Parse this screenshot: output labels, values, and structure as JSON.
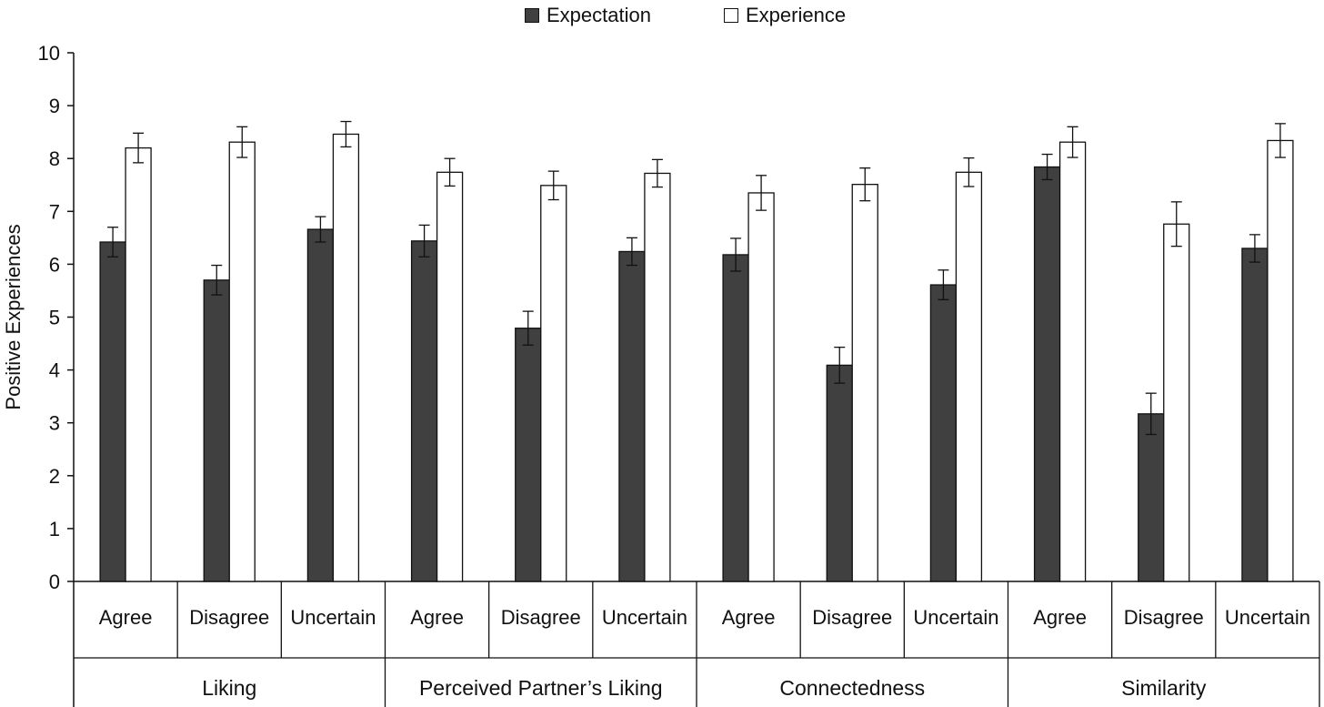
{
  "chart_data": {
    "type": "bar",
    "ylabel": "Positive Experiences",
    "ylim": [
      0,
      10
    ],
    "yticks": [
      "0",
      "1",
      "2",
      "3",
      "4",
      "5",
      "6",
      "7",
      "8",
      "9",
      "10"
    ],
    "legend_placement": "top",
    "groups": [
      {
        "label": "Liking",
        "categories": [
          "Agree",
          "Disagree",
          "Uncertain"
        ]
      },
      {
        "label": "Perceived Partner’s Liking",
        "categories": [
          "Agree",
          "Disagree",
          "Uncertain"
        ]
      },
      {
        "label": "Connectedness",
        "categories": [
          "Agree",
          "Disagree",
          "Uncertain"
        ]
      },
      {
        "label": "Similarity",
        "categories": [
          "Agree",
          "Disagree",
          "Uncertain"
        ]
      }
    ],
    "series": [
      {
        "name": "Expectation",
        "color": "#404040",
        "values": [
          6.42,
          5.7,
          6.66,
          6.44,
          4.79,
          6.24,
          6.18,
          4.09,
          5.61,
          7.84,
          3.17,
          6.3
        ],
        "error": [
          0.28,
          0.28,
          0.24,
          0.3,
          0.32,
          0.26,
          0.31,
          0.34,
          0.28,
          0.24,
          0.39,
          0.26
        ]
      },
      {
        "name": "Experience",
        "color": "#ffffff",
        "values": [
          8.2,
          8.31,
          8.46,
          7.74,
          7.49,
          7.72,
          7.35,
          7.51,
          7.74,
          8.31,
          6.76,
          8.34
        ],
        "error": [
          0.28,
          0.29,
          0.24,
          0.26,
          0.27,
          0.26,
          0.33,
          0.31,
          0.27,
          0.29,
          0.42,
          0.32
        ]
      }
    ]
  }
}
